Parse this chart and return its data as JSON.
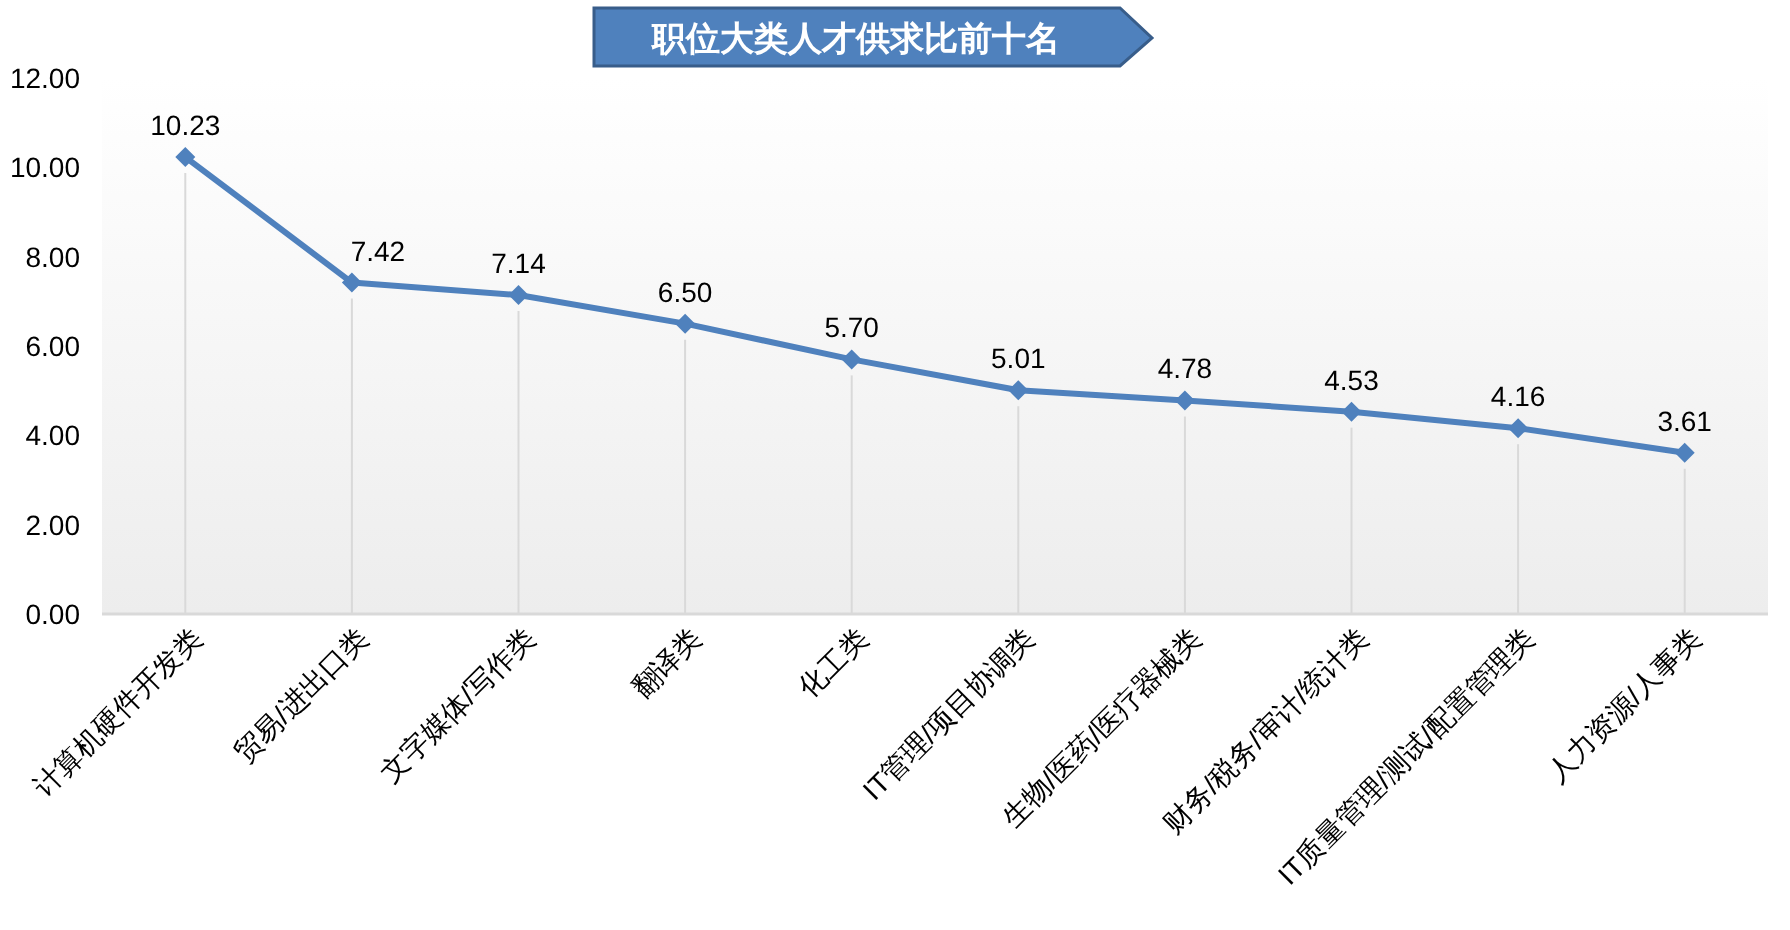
{
  "chart_data": {
    "type": "line",
    "title": "职位大类人才供求比前十名",
    "categories": [
      "计算机硬件开发类",
      "贸易/进出口类",
      "文字媒体/写作类",
      "翻译类",
      "化工类",
      "IT管理/项目协调类",
      "生物/医药/医疗器械类",
      "财务/税务/审计/统计类",
      "IT质量管理/测试/配置管理类",
      "人力资源/人事类"
    ],
    "series": [
      {
        "color": "#4f81bd",
        "values": [
          10.23,
          7.42,
          7.14,
          6.5,
          5.7,
          5.01,
          4.78,
          4.53,
          4.16,
          3.61
        ],
        "value_labels": [
          "10.23",
          "7.42",
          "7.14",
          "6.50",
          "5.70",
          "5.01",
          "4.78",
          "4.53",
          "4.16",
          "3.61"
        ]
      }
    ],
    "ylim": [
      0,
      12
    ],
    "yticks": [
      {
        "value": 0,
        "label": "0.00"
      },
      {
        "value": 2,
        "label": "2.00"
      },
      {
        "value": 4,
        "label": "4.00"
      },
      {
        "value": 6,
        "label": "6.00"
      },
      {
        "value": 8,
        "label": "8.00"
      },
      {
        "value": 10,
        "label": "10.00"
      },
      {
        "value": 12,
        "label": "12.00"
      }
    ],
    "grid": "x",
    "marker": "diamond",
    "line_style": "solid"
  }
}
